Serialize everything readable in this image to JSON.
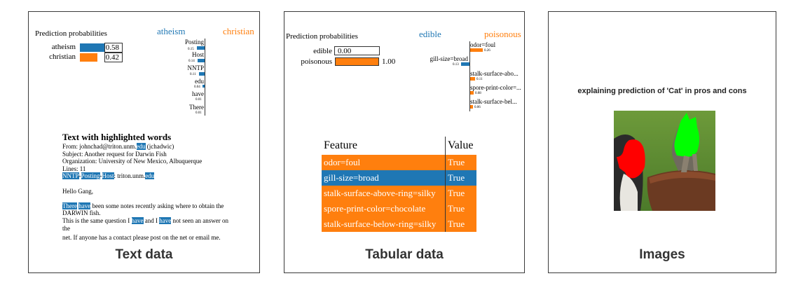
{
  "text_panel": {
    "caption": "Text data",
    "pred_title": "Prediction probabilities",
    "classes": {
      "left": "atheism",
      "right": "christian"
    },
    "probs": [
      {
        "label": "atheism",
        "value": "0.58",
        "fraction": 0.58,
        "color": "#1f77b4"
      },
      {
        "label": "christian",
        "value": "0.42",
        "fraction": 0.42,
        "color": "#ff7f0e"
      }
    ],
    "features": [
      {
        "name": "Posting",
        "weight": "0.15",
        "side": "left"
      },
      {
        "name": "Host",
        "weight": "0.14",
        "side": "left"
      },
      {
        "name": "NNTP",
        "weight": "0.11",
        "side": "left"
      },
      {
        "name": "edu",
        "weight": "0.04",
        "side": "left"
      },
      {
        "name": "have",
        "weight": "0.01",
        "side": "left"
      },
      {
        "name": "There",
        "weight": "0.01",
        "side": "left"
      }
    ],
    "highlight_title": "Text with highlighted words",
    "line1": {
      "a": "From: johnchad@triton.unm.",
      "hl": "edu",
      "b": " (jchadwic)"
    },
    "line2": "Subject: Another request for Darwin Fish",
    "line3": "Organization: University of New Mexico, Albuquerque",
    "line4": "Lines: 11",
    "line5": {
      "hl1": "NNTP",
      "d1": "-",
      "hl2": "Posting",
      "d2": "-",
      "hl3": "Host",
      "b": ": triton.unm.",
      "hl4": "edu"
    },
    "line6": "Hello Gang,",
    "line7": {
      "hl1": "There",
      "sp": " ",
      "hl2": "have",
      "b": " been some notes recently asking where to obtain the"
    },
    "line8": "DARWIN fish.",
    "line9": {
      "a": "This is the same question I ",
      "hl1": "have",
      "b": " and I ",
      "hl2": "have",
      "c": " not seen an answer on"
    },
    "line10": "the",
    "line11": "net. If anyone has a contact please post on the net or email me."
  },
  "tab_panel": {
    "caption": "Tabular data",
    "pred_title": "Prediction probabilities",
    "classes": {
      "left": "edible",
      "right": "poisonous"
    },
    "probs": [
      {
        "label": "edible",
        "value": "0.00",
        "fraction": 0.0,
        "color": "#1f77b4"
      },
      {
        "label": "poisonous",
        "value": "1.00",
        "fraction": 1.0,
        "color": "#ff7f0e"
      }
    ],
    "features": [
      {
        "name": "odor=foul",
        "weight": "0.26",
        "side": "right"
      },
      {
        "name": "gill-size=broad",
        "weight": "0.13",
        "side": "left"
      },
      {
        "name": "stalk-surface-abo...",
        "weight": "0.11",
        "side": "right"
      },
      {
        "name": "spore-print-color=...",
        "weight": "0.08",
        "side": "right"
      },
      {
        "name": "stalk-surface-bel...",
        "weight": "0.06",
        "side": "right"
      }
    ],
    "table": {
      "headers": [
        "Feature",
        "Value"
      ],
      "rows": [
        {
          "feature": "odor=foul",
          "value": "True",
          "color": "#ff7f0e"
        },
        {
          "feature": "gill-size=broad",
          "value": "True",
          "color": "#1f77b4"
        },
        {
          "feature": "stalk-surface-above-ring=silky",
          "value": "True",
          "color": "#ff7f0e"
        },
        {
          "feature": "spore-print-color=chocolate",
          "value": "True",
          "color": "#ff7f0e"
        },
        {
          "feature": "stalk-surface-below-ring=silky",
          "value": "True",
          "color": "#ff7f0e"
        }
      ]
    }
  },
  "img_panel": {
    "caption": "Images",
    "title": "explaining prediction of 'Cat' in pros and cons"
  },
  "colors": {
    "blue": "#1f77b4",
    "orange": "#ff7f0e",
    "pro": "#00ff00",
    "con": "#ff0000"
  }
}
